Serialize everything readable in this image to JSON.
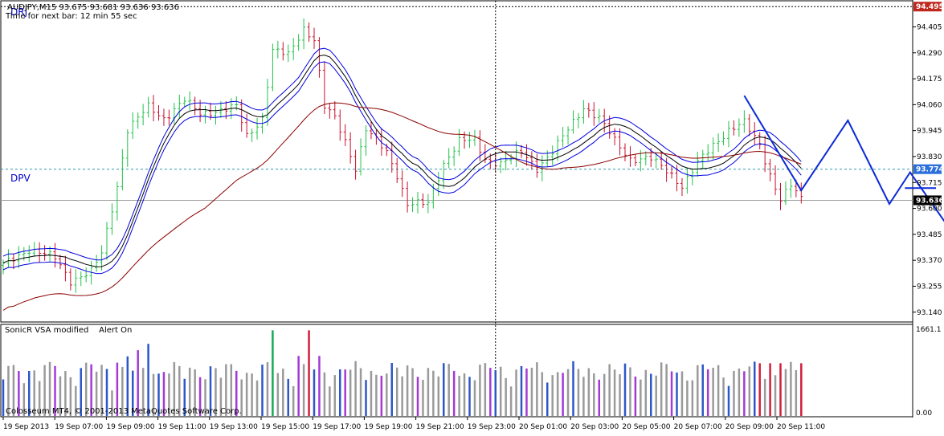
{
  "chart_data": [
    {
      "type": "candlestick",
      "symbol_line": "AUDJPY,M15  93.675 93.681 93.636 93.636",
      "timer_text": "Time for next bar: 12 min 55 sec",
      "labels": {
        "drj": "DRJ",
        "dpv": "DPV"
      },
      "ylim": [
        93.1,
        94.51
      ],
      "y_ticks": [
        "94.405",
        "94.290",
        "94.175",
        "94.060",
        "93.945",
        "93.830",
        "93.715",
        "93.600",
        "93.485",
        "93.370",
        "93.255",
        "93.140"
      ],
      "price_tags": [
        {
          "text": "94.495",
          "value": 94.495,
          "color": "#c0281e"
        },
        {
          "text": "93.774",
          "value": 93.774,
          "color": "#2a6fdb"
        },
        {
          "text": "93.636",
          "value": 93.636,
          "color": "#000000"
        }
      ],
      "hline_dotted_value": 93.774,
      "hline_solid_value": 93.636,
      "candle_count": 155,
      "anchors": [
        [
          0,
          93.35
        ],
        [
          5,
          93.42
        ],
        [
          10,
          93.38
        ],
        [
          13,
          93.28
        ],
        [
          17,
          93.32
        ],
        [
          19,
          93.4
        ],
        [
          22,
          93.7
        ],
        [
          24,
          93.95
        ],
        [
          28,
          94.05
        ],
        [
          31,
          94.0
        ],
        [
          35,
          94.08
        ],
        [
          38,
          94.02
        ],
        [
          45,
          94.05
        ],
        [
          47,
          93.92
        ],
        [
          50,
          94.0
        ],
        [
          52,
          94.3
        ],
        [
          55,
          94.28
        ],
        [
          58,
          94.4
        ],
        [
          60,
          94.35
        ],
        [
          62,
          94.05
        ],
        [
          64,
          94.0
        ],
        [
          66,
          93.9
        ],
        [
          68,
          93.78
        ],
        [
          70,
          93.95
        ],
        [
          72,
          93.9
        ],
        [
          74,
          93.85
        ],
        [
          76,
          93.75
        ],
        [
          78,
          93.62
        ],
        [
          82,
          93.62
        ],
        [
          85,
          93.8
        ],
        [
          88,
          93.9
        ],
        [
          91,
          93.9
        ],
        [
          93,
          93.82
        ],
        [
          96,
          93.8
        ],
        [
          100,
          93.85
        ],
        [
          103,
          93.78
        ],
        [
          106,
          93.85
        ],
        [
          109,
          93.95
        ],
        [
          112,
          94.05
        ],
        [
          115,
          94.0
        ],
        [
          118,
          93.9
        ],
        [
          121,
          93.82
        ],
        [
          125,
          93.82
        ],
        [
          129,
          93.75
        ],
        [
          131,
          93.7
        ],
        [
          134,
          93.8
        ],
        [
          137,
          93.88
        ],
        [
          140,
          93.95
        ],
        [
          143,
          93.98
        ],
        [
          146,
          93.88
        ],
        [
          148,
          93.75
        ],
        [
          150,
          93.64
        ],
        [
          152,
          93.7
        ],
        [
          154,
          93.64
        ]
      ],
      "ma_lines": [
        {
          "name": "upper",
          "color": "#0000e0",
          "offset": 0.03,
          "period": 12
        },
        {
          "name": "mid",
          "color": "#000000",
          "offset": 0.0,
          "period": 12
        },
        {
          "name": "lower",
          "color": "#0000e0",
          "offset": -0.03,
          "period": 12
        },
        {
          "name": "slow",
          "color": "#8b0000",
          "offset": -0.06,
          "period": 40
        }
      ],
      "zigzag": [
        [
          143,
          94.1
        ],
        [
          154,
          93.68
        ],
        [
          163,
          93.99
        ],
        [
          171,
          93.62
        ],
        [
          175,
          93.76
        ],
        [
          193,
          93.17
        ]
      ],
      "hbar": {
        "x0": 174,
        "x1": 180,
        "value": 93.69
      },
      "x_ticks": [
        "19 Sep 2013",
        "19 Sep 07:00",
        "19 Sep 09:00",
        "19 Sep 11:00",
        "19 Sep 13:00",
        "19 Sep 15:00",
        "19 Sep 17:00",
        "19 Sep 19:00",
        "19 Sep 21:00",
        "19 Sep 23:00",
        "20 Sep 01:00",
        "20 Sep 03:00",
        "20 Sep 05:00",
        "20 Sep 07:00",
        "20 Sep 09:00",
        "20 Sep 11:00"
      ],
      "crosshair_index": 95
    },
    {
      "type": "bar",
      "indicator_label": "SonicR VSA modified",
      "alert_label": "Alert On",
      "max_label": "1661.1",
      "zero_label": "0.00",
      "copyright": "Colosseum MT4, © 2001-2013 MetaQuotes Software Corp.",
      "ylim": [
        0,
        1661.1
      ],
      "colors": {
        "gray": "#9a9a9a",
        "blue": "#2d57c9",
        "purple": "#a23ad6",
        "green": "#19a85a",
        "red": "#d21e3c"
      }
    }
  ]
}
